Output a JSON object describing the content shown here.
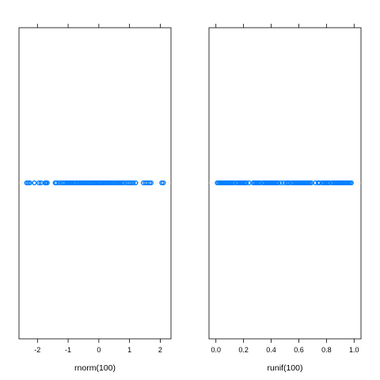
{
  "chart_data": [
    {
      "type": "scatter",
      "panel": "left",
      "xlabel": "rnorm(100)",
      "ylabel": "",
      "title": "",
      "xlim": [
        -2.6,
        2.35
      ],
      "xticks": [
        -2,
        -1,
        0,
        1,
        2
      ],
      "xtick_labels": [
        "-2",
        "-1",
        "0",
        "1",
        "2"
      ],
      "grid": false,
      "color": "#0080ff",
      "x": [
        -2.35,
        -2.3,
        -2.25,
        -2.1,
        -1.95,
        -1.88,
        -1.75,
        -1.72,
        -1.68,
        -1.42,
        -1.38,
        -1.3,
        -1.22,
        -1.15,
        -1.1,
        -1.05,
        -1.0,
        -0.95,
        -0.9,
        -0.86,
        -0.8,
        -0.76,
        -0.7,
        -0.65,
        -0.6,
        -0.55,
        -0.5,
        -0.46,
        -0.42,
        -0.38,
        -0.34,
        -0.3,
        -0.26,
        -0.22,
        -0.18,
        -0.14,
        -0.1,
        -0.06,
        -0.02,
        0.02,
        0.06,
        0.1,
        0.15,
        0.2,
        0.25,
        0.3,
        0.35,
        0.4,
        0.45,
        0.5,
        0.55,
        0.6,
        0.65,
        0.7,
        0.75,
        0.8,
        0.88,
        0.95,
        1.0,
        1.05,
        1.12,
        1.2,
        1.45,
        1.52,
        1.58,
        1.65,
        1.7,
        2.05,
        2.1
      ]
    },
    {
      "type": "scatter",
      "panel": "right",
      "xlabel": "runif(100)",
      "ylabel": "",
      "title": "",
      "xlim": [
        -0.05,
        1.05
      ],
      "xticks": [
        0.0,
        0.2,
        0.4,
        0.6,
        0.8,
        1.0
      ],
      "xtick_labels": [
        "0.0",
        "0.2",
        "0.4",
        "0.6",
        "0.8",
        "1.0"
      ],
      "grid": false,
      "color": "#0080ff",
      "x": [
        0.01,
        0.02,
        0.03,
        0.04,
        0.05,
        0.06,
        0.07,
        0.08,
        0.09,
        0.1,
        0.11,
        0.12,
        0.13,
        0.15,
        0.16,
        0.17,
        0.18,
        0.19,
        0.2,
        0.21,
        0.22,
        0.24,
        0.27,
        0.28,
        0.29,
        0.3,
        0.31,
        0.32,
        0.34,
        0.35,
        0.36,
        0.37,
        0.38,
        0.39,
        0.4,
        0.41,
        0.42,
        0.43,
        0.44,
        0.45,
        0.47,
        0.49,
        0.51,
        0.52,
        0.53,
        0.55,
        0.56,
        0.57,
        0.58,
        0.59,
        0.6,
        0.61,
        0.62,
        0.63,
        0.64,
        0.65,
        0.66,
        0.67,
        0.68,
        0.69,
        0.72,
        0.74,
        0.75,
        0.77,
        0.78,
        0.79,
        0.8,
        0.81,
        0.82,
        0.84,
        0.85,
        0.86,
        0.87,
        0.88,
        0.89,
        0.9,
        0.91,
        0.92,
        0.93,
        0.94,
        0.95,
        0.96,
        0.97,
        0.98
      ]
    }
  ]
}
